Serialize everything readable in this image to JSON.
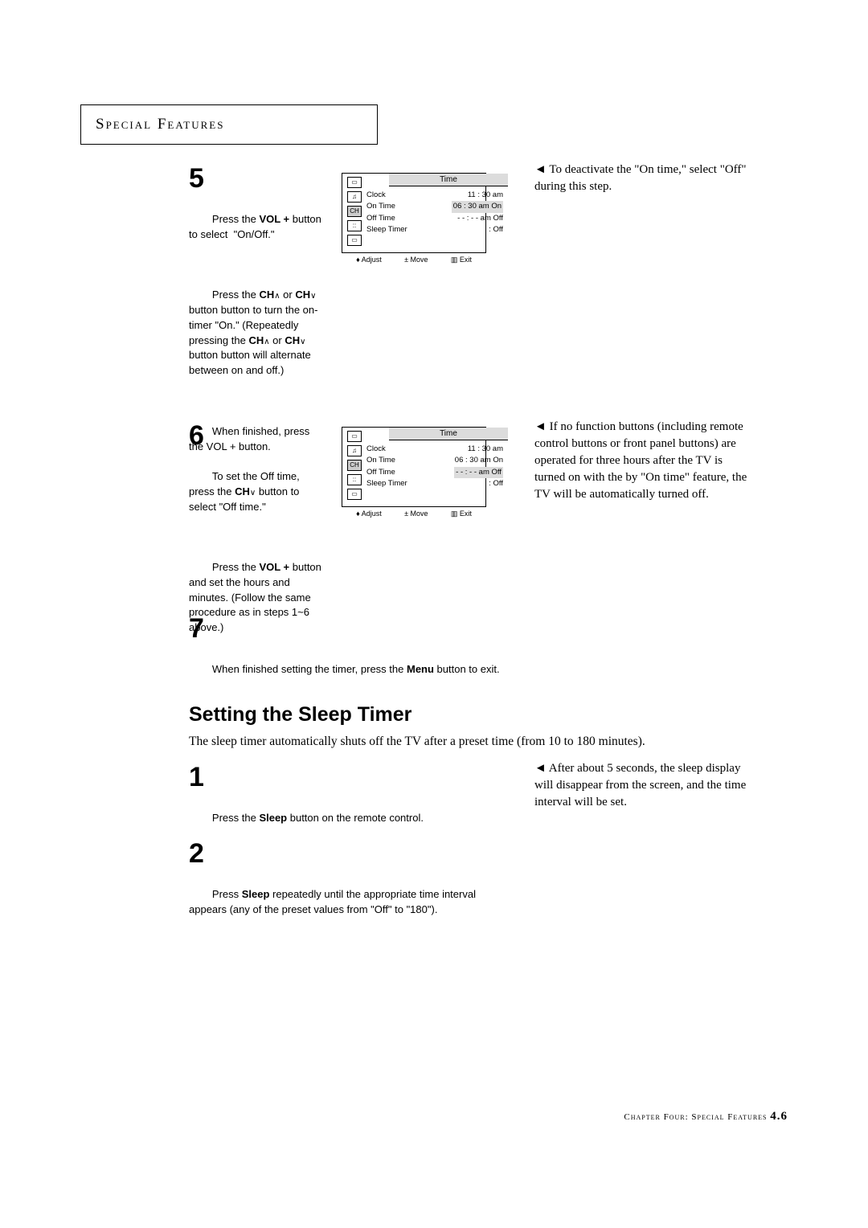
{
  "header": {
    "title": "Special Features"
  },
  "step5": {
    "num": "5",
    "p1a": "Press the ",
    "p1b": "VOL +",
    "p1c": " button to select  \"On/Off.\"",
    "p2a": "Press the ",
    "p2b": "CH",
    "p2c": " or ",
    "p2d": "CH",
    "p2e": " button button to turn the on-timer \"On.\" (Repeatedly pressing the ",
    "p2f": "CH",
    "p2g": " or ",
    "p2h": "CH",
    "p2i": " button button will alternate between on and off.)",
    "p3": "When finished, press the VOL + button."
  },
  "step6": {
    "num": "6",
    "p1a": "To set the Off time, press the ",
    "p1b": "CH",
    "p1c": " button to select \"Off time.\"",
    "p2a": "Press the ",
    "p2b": "VOL +",
    "p2c": " button and set the hours and minutes. (Follow the same procedure as in steps 1~6 above.)"
  },
  "step7": {
    "num": "7",
    "p1a": "When finished setting the timer, press the ",
    "p1b": "Menu",
    "p1c": " button to exit."
  },
  "osd1": {
    "title": "Time",
    "rows": [
      {
        "k": "Clock",
        "v": "11 : 30 am"
      },
      {
        "k": "On Time",
        "v": "06 : 30 am On",
        "sel": true
      },
      {
        "k": "Off Time",
        "v": "- - : - -  am Off"
      },
      {
        "k": "Sleep Timer",
        "v": ":   Off"
      }
    ],
    "footer": {
      "a": "♦ Adjust",
      "b": "± Move",
      "c": "▥ Exit"
    }
  },
  "osd2": {
    "title": "Time",
    "rows": [
      {
        "k": "Clock",
        "v": "11 : 30 am"
      },
      {
        "k": "On Time",
        "v": "06 : 30 am On"
      },
      {
        "k": "Off Time",
        "v": "- - : - -  am Off",
        "sel": true
      },
      {
        "k": "Sleep Timer",
        "v": ":   Off"
      }
    ],
    "footer": {
      "a": "♦ Adjust",
      "b": "± Move",
      "c": "▥ Exit"
    }
  },
  "note1": {
    "text": "◄   To deactivate the \"On time,\" select \"Off\" during this step."
  },
  "note2": {
    "text": "◄   If no function buttons (including remote control buttons or front panel buttons) are operated for three hours after the TV is turned on with the by \"On time\" feature, the TV will be automatically turned off."
  },
  "sleep": {
    "heading": "Setting the Sleep Timer",
    "intro": "The sleep timer automatically shuts off the TV after a preset time (from 10 to 180 minutes)."
  },
  "sleep1": {
    "num": "1",
    "p1a": "Press the ",
    "p1b": "Sleep",
    "p1c": " button on the remote control."
  },
  "sleep2": {
    "num": "2",
    "p1a": "Press ",
    "p1b": "Sleep",
    "p1c": " repeatedly until the appropriate time interval appears (any of the preset values from \"Off\" to \"180\")."
  },
  "note3": {
    "text": "◄   After about 5 seconds, the sleep display will disappear from the screen, and the time interval will be set."
  },
  "footer": {
    "pre": "Chapter Four: Special Features ",
    "page": "4.6"
  }
}
